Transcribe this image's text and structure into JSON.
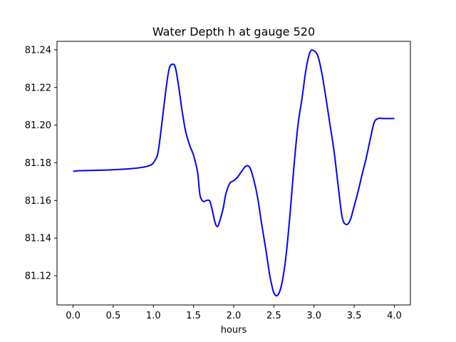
{
  "chart_data": {
    "type": "line",
    "title": "Water Depth h at gauge 520",
    "xlabel": "hours",
    "ylabel": "",
    "xlim": [
      -0.2,
      4.2
    ],
    "ylim": [
      81.1045,
      81.2445
    ],
    "x_ticks": [
      0.0,
      0.5,
      1.0,
      1.5,
      2.0,
      2.5,
      3.0,
      3.5,
      4.0
    ],
    "x_tick_labels": [
      "0.0",
      "0.5",
      "1.0",
      "1.5",
      "2.0",
      "2.5",
      "3.0",
      "3.5",
      "4.0"
    ],
    "y_ticks": [
      81.12,
      81.14,
      81.16,
      81.18,
      81.2,
      81.22,
      81.24
    ],
    "y_tick_labels": [
      "81.12",
      "81.14",
      "81.16",
      "81.18",
      "81.20",
      "81.22",
      "81.24"
    ],
    "grid": false,
    "legend": "none",
    "series": [
      {
        "color": "#0000ff",
        "x": [
          0.0,
          0.1,
          0.3,
          0.5,
          0.7,
          0.85,
          0.95,
          1.0,
          1.05,
          1.08,
          1.12,
          1.16,
          1.2,
          1.25,
          1.28,
          1.32,
          1.36,
          1.4,
          1.45,
          1.5,
          1.55,
          1.58,
          1.62,
          1.66,
          1.7,
          1.73,
          1.77,
          1.8,
          1.83,
          1.87,
          1.9,
          1.95,
          2.0,
          2.05,
          2.1,
          2.15,
          2.2,
          2.25,
          2.3,
          2.35,
          2.4,
          2.45,
          2.5,
          2.55,
          2.6,
          2.65,
          2.7,
          2.75,
          2.8,
          2.85,
          2.9,
          2.95,
          3.0,
          3.05,
          3.1,
          3.15,
          3.2,
          3.25,
          3.3,
          3.35,
          3.4,
          3.45,
          3.5,
          3.55,
          3.6,
          3.65,
          3.7,
          3.75,
          3.8,
          3.85,
          3.9,
          3.95,
          4.0
        ],
        "y": [
          81.1755,
          81.1758,
          81.176,
          81.1763,
          81.1768,
          81.1775,
          81.1785,
          81.18,
          81.184,
          81.192,
          81.206,
          81.22,
          81.2305,
          81.2323,
          81.2295,
          81.219,
          81.207,
          81.197,
          81.1895,
          81.184,
          81.175,
          81.163,
          81.1595,
          81.16,
          81.1598,
          81.1555,
          81.148,
          81.1462,
          81.1495,
          81.156,
          81.163,
          81.169,
          81.1705,
          81.1725,
          81.1755,
          81.1782,
          81.1775,
          81.171,
          81.161,
          81.147,
          81.134,
          81.12,
          81.111,
          81.1098,
          81.116,
          81.13,
          81.152,
          81.178,
          81.2,
          81.214,
          81.2295,
          81.2387,
          81.2395,
          81.2365,
          81.227,
          81.214,
          81.2,
          81.186,
          81.168,
          81.1512,
          81.1472,
          81.1495,
          81.157,
          81.165,
          81.174,
          81.1825,
          81.1925,
          81.2015,
          81.2035,
          81.2035,
          81.2035,
          81.2035,
          81.2035
        ]
      }
    ]
  }
}
